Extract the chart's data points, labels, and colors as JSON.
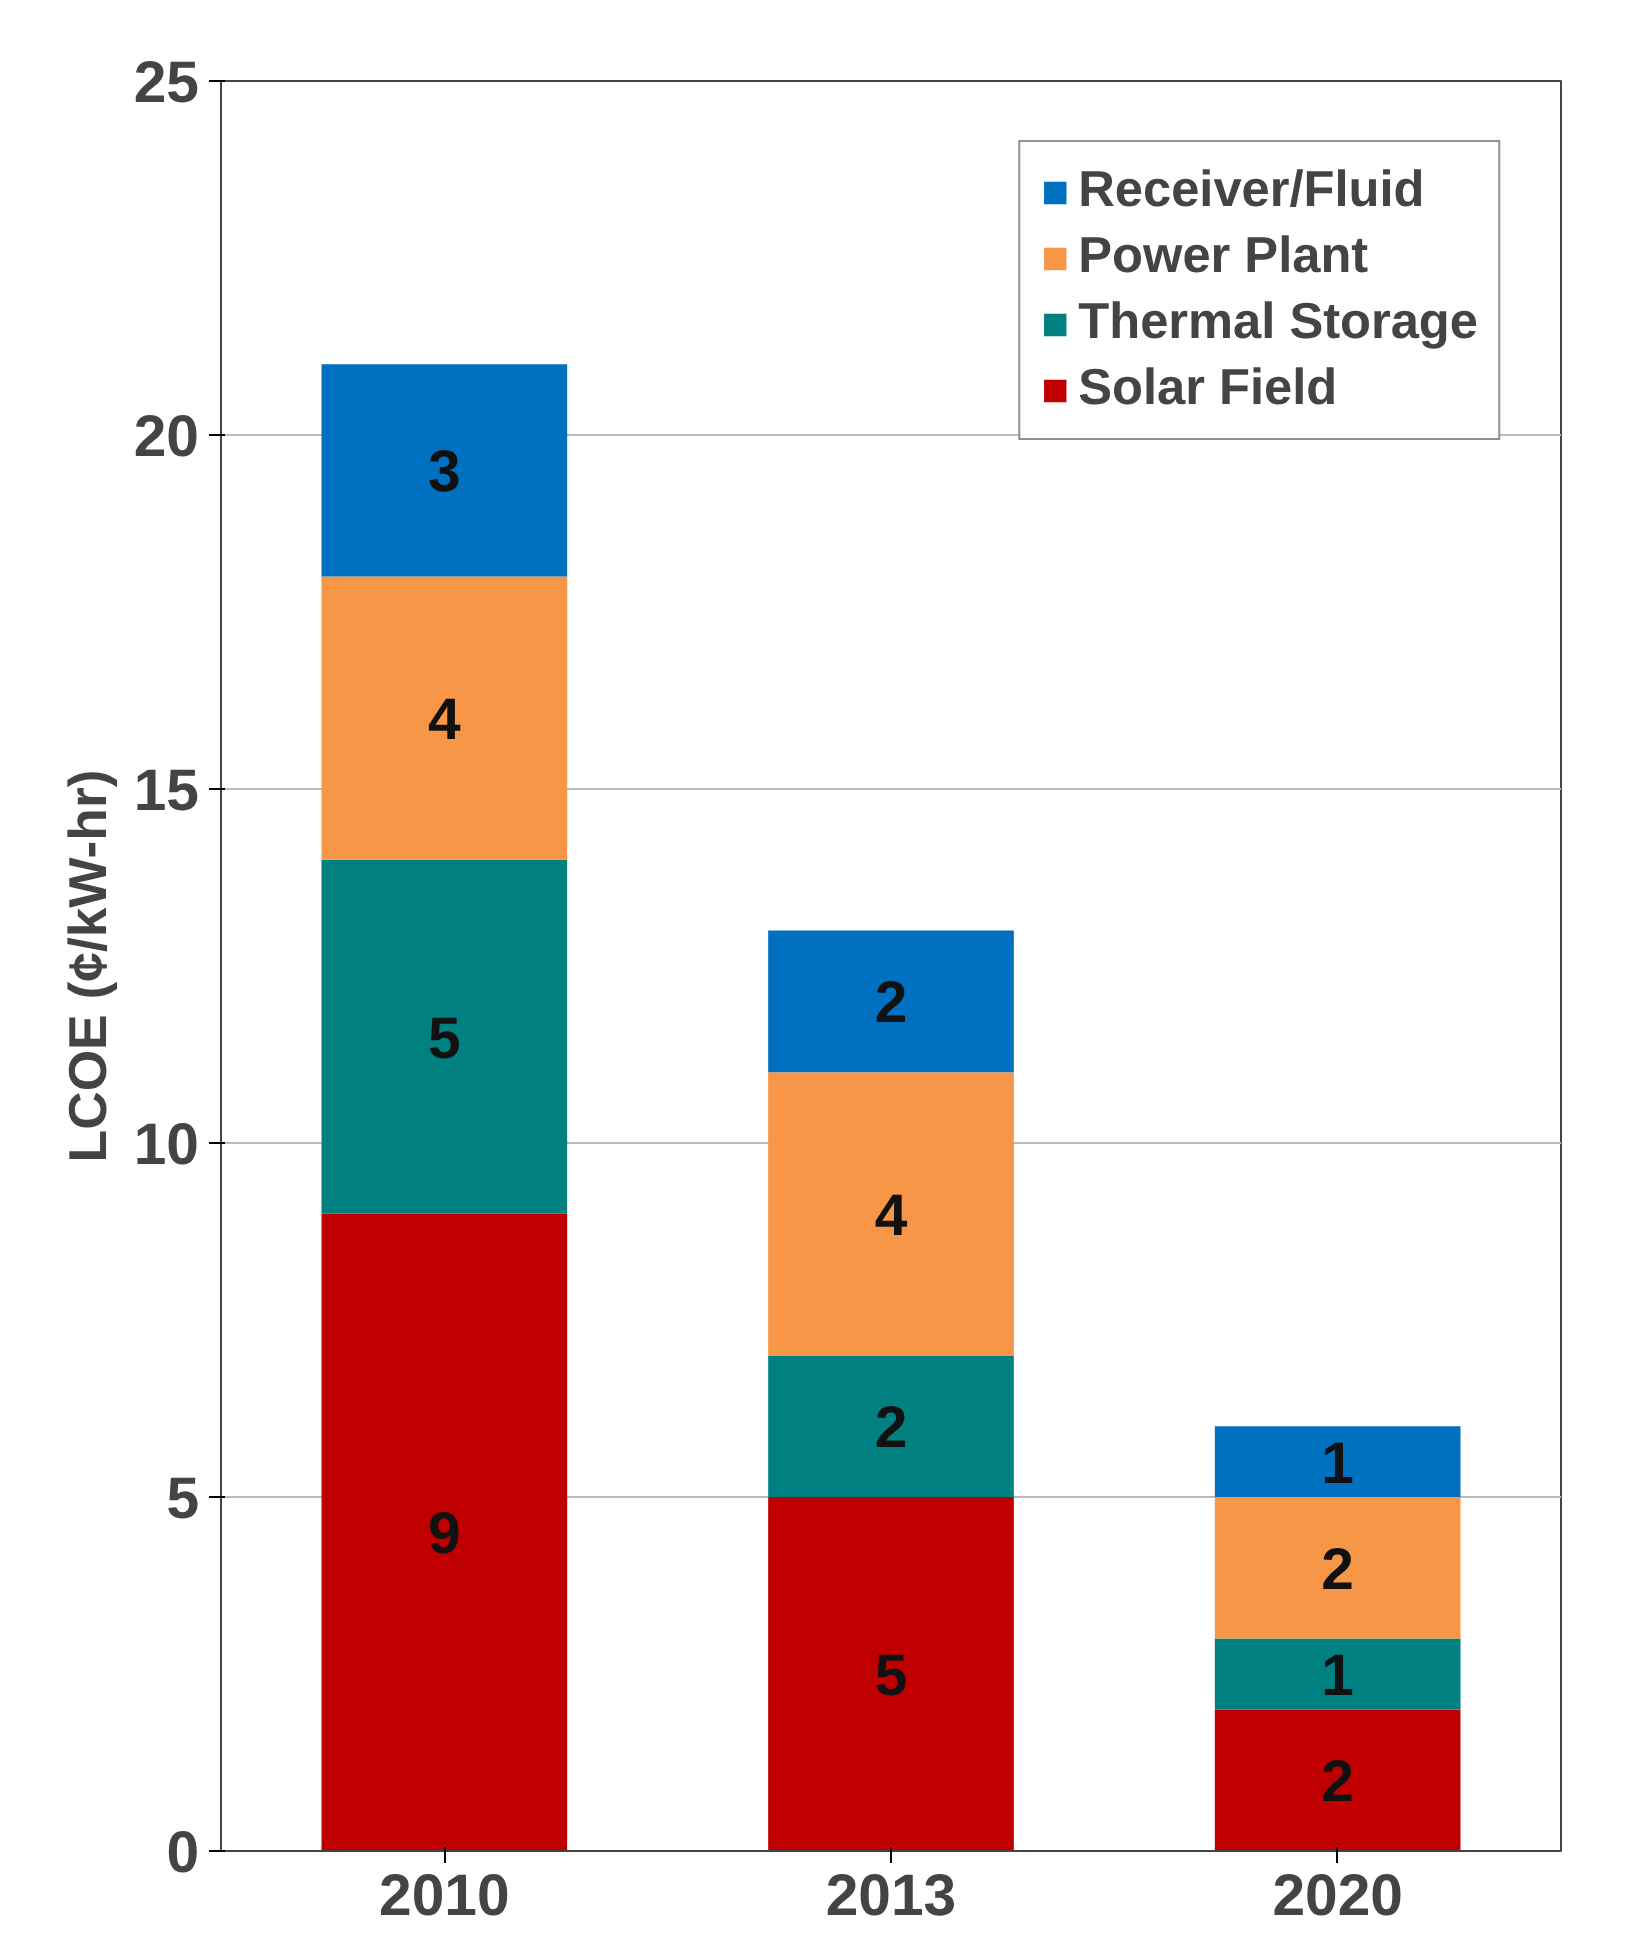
{
  "chart_data": {
    "type": "bar",
    "stacked": true,
    "ylabel": "LCOE (¢/kW-hr)",
    "categories": [
      "2010",
      "2013",
      "2020"
    ],
    "series": [
      {
        "name": "Solar Field",
        "color": "#c00000",
        "values": [
          9,
          5,
          2
        ]
      },
      {
        "name": "Thermal Storage",
        "color": "#008080",
        "values": [
          5,
          2,
          1
        ]
      },
      {
        "name": "Power Plant",
        "color": "#f79646",
        "values": [
          4,
          4,
          2
        ]
      },
      {
        "name": "Receiver/Fluid",
        "color": "#0070c0",
        "values": [
          3,
          2,
          1
        ]
      }
    ],
    "ylim": [
      0,
      25
    ],
    "yticks": [
      0,
      5,
      10,
      15,
      20,
      25
    ],
    "grid": "y",
    "legend": "top right",
    "data_labels": true
  }
}
